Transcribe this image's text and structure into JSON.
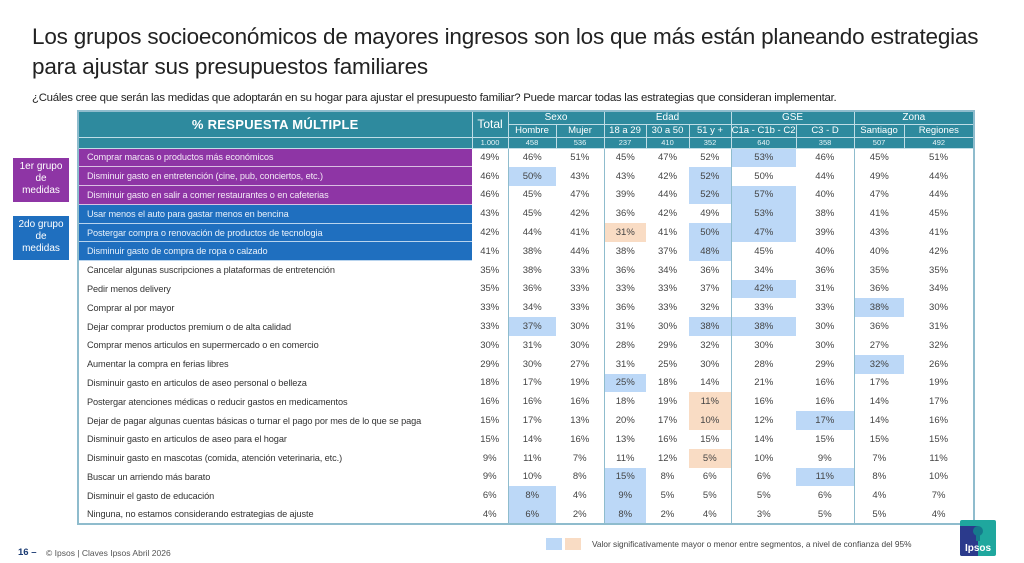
{
  "title": "Los grupos socioeconómicos de mayores ingresos son los que más están planeando estrategias para ajustar sus presupuestos familiares",
  "subtitle": "¿Cuáles cree que serán las medidas que adoptarán en su hogar para ajustar el presupuesto familiar? Puede marcar todas las estrategias que consideran implementar.",
  "colors": {
    "header": "#2e8a9e",
    "group1": "#8e35a5",
    "group2": "#1f6fbf",
    "sig_high": "#bcd8f7",
    "sig_low": "#f9dcc4"
  },
  "groups": [
    {
      "label_lines": [
        "1er grupo",
        "de",
        "medidas"
      ]
    },
    {
      "label_lines": [
        "2do grupo",
        "de",
        "medidas"
      ]
    }
  ],
  "table": {
    "title": "% RESPUESTA MÚLTIPLE",
    "total_label": "Total",
    "total_n": "1.000",
    "group_headers": [
      "Sexo",
      "Edad",
      "GSE",
      "Zona"
    ],
    "segments": [
      "Hombre",
      "Mujer",
      "18 a 29",
      "30 a 50",
      "51 y +",
      "C1a - C1b - C2",
      "C3 - D",
      "Santiago",
      "Regiones"
    ],
    "segment_n": [
      "458",
      "536",
      "237",
      "410",
      "352",
      "640",
      "358",
      "507",
      "492"
    ],
    "rows": [
      {
        "label": "Comprar marcas o productos más económicos",
        "group": 1,
        "values": [
          "49%",
          "46%",
          "51%",
          "45%",
          "47%",
          "52%",
          "53%",
          "46%",
          "45%",
          "51%"
        ],
        "hl": [
          "",
          "",
          "",
          "",
          "",
          "",
          "b",
          "",
          "",
          ""
        ]
      },
      {
        "label": "Disminuir gasto en entretención (cine, pub, conciertos, etc.)",
        "group": 1,
        "values": [
          "46%",
          "50%",
          "43%",
          "43%",
          "42%",
          "52%",
          "50%",
          "44%",
          "49%",
          "44%"
        ],
        "hl": [
          "",
          "b",
          "",
          "",
          "",
          "b",
          "",
          "",
          "",
          ""
        ]
      },
      {
        "label": "Disminuir gasto en salir a comer restaurantes o en cafeterias",
        "group": 1,
        "values": [
          "46%",
          "45%",
          "47%",
          "39%",
          "44%",
          "52%",
          "57%",
          "40%",
          "47%",
          "44%"
        ],
        "hl": [
          "",
          "",
          "",
          "",
          "",
          "b",
          "b",
          "",
          "",
          ""
        ]
      },
      {
        "label": "Usar menos el auto para gastar menos en bencina",
        "group": 2,
        "values": [
          "43%",
          "45%",
          "42%",
          "36%",
          "42%",
          "49%",
          "53%",
          "38%",
          "41%",
          "45%"
        ],
        "hl": [
          "",
          "",
          "",
          "",
          "",
          "",
          "b",
          "",
          "",
          ""
        ]
      },
      {
        "label": "Postergar compra o renovación de productos de tecnologia",
        "group": 2,
        "values": [
          "42%",
          "44%",
          "41%",
          "31%",
          "41%",
          "50%",
          "47%",
          "39%",
          "43%",
          "41%"
        ],
        "hl": [
          "",
          "",
          "",
          "o",
          "",
          "b",
          "b",
          "",
          "",
          ""
        ]
      },
      {
        "label": "Disminuir gasto de compra de ropa o calzado",
        "group": 2,
        "values": [
          "41%",
          "38%",
          "44%",
          "38%",
          "37%",
          "48%",
          "45%",
          "40%",
          "40%",
          "42%"
        ],
        "hl": [
          "",
          "",
          "",
          "",
          "",
          "b",
          "",
          "",
          "",
          ""
        ]
      },
      {
        "label": "Cancelar algunas suscripciones a plataformas de entretención",
        "group": 0,
        "values": [
          "35%",
          "38%",
          "33%",
          "36%",
          "34%",
          "36%",
          "34%",
          "36%",
          "35%",
          "35%"
        ],
        "hl": [
          "",
          "",
          "",
          "",
          "",
          "",
          "",
          "",
          "",
          ""
        ]
      },
      {
        "label": "Pedir menos delivery",
        "group": 0,
        "values": [
          "35%",
          "36%",
          "33%",
          "33%",
          "33%",
          "37%",
          "42%",
          "31%",
          "36%",
          "34%"
        ],
        "hl": [
          "",
          "",
          "",
          "",
          "",
          "",
          "b",
          "",
          "",
          ""
        ]
      },
      {
        "label": "Comprar al por mayor",
        "group": 0,
        "values": [
          "33%",
          "34%",
          "33%",
          "36%",
          "33%",
          "32%",
          "33%",
          "33%",
          "38%",
          "30%"
        ],
        "hl": [
          "",
          "",
          "",
          "",
          "",
          "",
          "",
          "",
          "b",
          ""
        ]
      },
      {
        "label": "Dejar comprar productos premium o de alta calidad",
        "group": 0,
        "values": [
          "33%",
          "37%",
          "30%",
          "31%",
          "30%",
          "38%",
          "38%",
          "30%",
          "36%",
          "31%"
        ],
        "hl": [
          "",
          "b",
          "",
          "",
          "",
          "b",
          "b",
          "",
          "",
          ""
        ]
      },
      {
        "label": "Comprar menos articulos en supermercado o en comercio",
        "group": 0,
        "values": [
          "30%",
          "31%",
          "30%",
          "28%",
          "29%",
          "32%",
          "30%",
          "30%",
          "27%",
          "32%"
        ],
        "hl": [
          "",
          "",
          "",
          "",
          "",
          "",
          "",
          "",
          "",
          ""
        ]
      },
      {
        "label": "Aumentar la compra en ferias libres",
        "group": 0,
        "values": [
          "29%",
          "30%",
          "27%",
          "31%",
          "25%",
          "30%",
          "28%",
          "29%",
          "32%",
          "26%"
        ],
        "hl": [
          "",
          "",
          "",
          "",
          "",
          "",
          "",
          "",
          "b",
          ""
        ]
      },
      {
        "label": "Disminuir gasto en articulos de aseo personal o belleza",
        "group": 0,
        "values": [
          "18%",
          "17%",
          "19%",
          "25%",
          "18%",
          "14%",
          "21%",
          "16%",
          "17%",
          "19%"
        ],
        "hl": [
          "",
          "",
          "",
          "b",
          "",
          "",
          "",
          "",
          "",
          ""
        ]
      },
      {
        "label": "Postergar atenciones médicas o reducir gastos en medicamentos",
        "group": 0,
        "values": [
          "16%",
          "16%",
          "16%",
          "18%",
          "19%",
          "11%",
          "16%",
          "16%",
          "14%",
          "17%"
        ],
        "hl": [
          "",
          "",
          "",
          "",
          "",
          "o",
          "",
          "",
          "",
          ""
        ]
      },
      {
        "label": "Dejar de pagar algunas cuentas básicas o turnar el pago por mes de lo que se paga",
        "group": 0,
        "values": [
          "15%",
          "17%",
          "13%",
          "20%",
          "17%",
          "10%",
          "12%",
          "17%",
          "14%",
          "16%"
        ],
        "hl": [
          "",
          "",
          "",
          "",
          "",
          "o",
          "",
          "b",
          "",
          ""
        ]
      },
      {
        "label": "Disminuir gasto en articulos de aseo para el hogar",
        "group": 0,
        "values": [
          "15%",
          "14%",
          "16%",
          "13%",
          "16%",
          "15%",
          "14%",
          "15%",
          "15%",
          "15%"
        ],
        "hl": [
          "",
          "",
          "",
          "",
          "",
          "",
          "",
          "",
          "",
          ""
        ]
      },
      {
        "label": "Disminuir gasto en mascotas (comida, atención veterinaria, etc.)",
        "group": 0,
        "values": [
          "9%",
          "11%",
          "7%",
          "11%",
          "12%",
          "5%",
          "10%",
          "9%",
          "7%",
          "11%"
        ],
        "hl": [
          "",
          "",
          "",
          "",
          "",
          "o",
          "",
          "",
          "",
          ""
        ]
      },
      {
        "label": "Buscar un arriendo más barato",
        "group": 0,
        "values": [
          "9%",
          "10%",
          "8%",
          "15%",
          "8%",
          "6%",
          "6%",
          "11%",
          "8%",
          "10%"
        ],
        "hl": [
          "",
          "",
          "",
          "b",
          "",
          "",
          "",
          "b",
          "",
          ""
        ]
      },
      {
        "label": "Disminuir el gasto de educación",
        "group": 0,
        "values": [
          "6%",
          "8%",
          "4%",
          "9%",
          "5%",
          "5%",
          "5%",
          "6%",
          "4%",
          "7%"
        ],
        "hl": [
          "",
          "b",
          "",
          "b",
          "",
          "",
          "",
          "",
          "",
          ""
        ]
      },
      {
        "label": "Ninguna, no estamos considerando estrategias de ajuste",
        "group": 0,
        "values": [
          "4%",
          "6%",
          "2%",
          "8%",
          "2%",
          "4%",
          "3%",
          "5%",
          "5%",
          "4%"
        ],
        "hl": [
          "",
          "b",
          "",
          "b",
          "",
          "",
          "",
          "",
          "",
          ""
        ]
      }
    ]
  },
  "legend": {
    "text": "Valor significativamente mayor o menor entre segmentos, a nivel de confianza del 95%"
  },
  "footer": {
    "page": "16 –",
    "text": "© Ipsos | Claves Ipsos Abril 2026"
  },
  "logo": {
    "text": "Ipsos"
  }
}
